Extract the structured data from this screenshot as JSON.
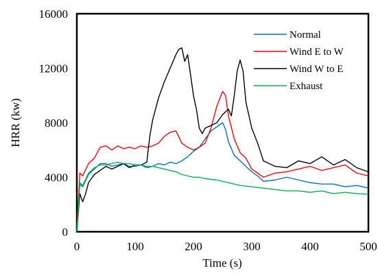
{
  "chart_data": {
    "type": "line",
    "title": "",
    "xlabel": "Time (s)",
    "ylabel": "HRR (kw)",
    "xlim": [
      0,
      500
    ],
    "ylim": [
      0,
      16000
    ],
    "xticks": [
      0,
      100,
      200,
      300,
      400,
      500
    ],
    "yticks": [
      0,
      4000,
      8000,
      12000,
      16000
    ],
    "grid": false,
    "legend": "top-right",
    "series": [
      {
        "name": "Normal",
        "color": "#0070C0",
        "x": [
          0,
          5,
          10,
          20,
          30,
          40,
          50,
          60,
          70,
          80,
          90,
          100,
          110,
          120,
          130,
          140,
          150,
          160,
          170,
          180,
          190,
          200,
          210,
          220,
          230,
          240,
          250,
          255,
          260,
          270,
          280,
          290,
          300,
          310,
          320,
          340,
          360,
          380,
          400,
          420,
          440,
          460,
          480,
          500
        ],
        "y": [
          0,
          3500,
          3300,
          4200,
          4600,
          5000,
          5000,
          4800,
          4900,
          5000,
          4800,
          4800,
          4900,
          4700,
          4800,
          5000,
          4900,
          5100,
          5000,
          5200,
          5500,
          5900,
          6200,
          6800,
          7400,
          7700,
          8000,
          7500,
          6600,
          5600,
          5200,
          4800,
          4400,
          4100,
          3700,
          3800,
          4000,
          3800,
          3600,
          3500,
          3500,
          3300,
          3400,
          3200
        ]
      },
      {
        "name": "Wind E to W",
        "color": "#FF0000",
        "x": [
          0,
          5,
          10,
          20,
          30,
          40,
          50,
          60,
          70,
          80,
          90,
          100,
          110,
          120,
          130,
          140,
          150,
          160,
          170,
          180,
          190,
          200,
          210,
          220,
          230,
          240,
          250,
          255,
          260,
          270,
          280,
          290,
          300,
          310,
          320,
          340,
          360,
          380,
          400,
          420,
          440,
          460,
          480,
          500
        ],
        "y": [
          0,
          4300,
          4100,
          5000,
          5400,
          6200,
          6300,
          6000,
          6300,
          6100,
          6200,
          6100,
          6300,
          6200,
          6300,
          6500,
          7000,
          7300,
          7400,
          6500,
          6200,
          6000,
          6200,
          6500,
          7600,
          9200,
          10300,
          10000,
          8500,
          6800,
          5800,
          5400,
          4600,
          4300,
          4000,
          4300,
          4400,
          4600,
          4800,
          4500,
          4700,
          4900,
          4300,
          4100
        ]
      },
      {
        "name": "Wind W to E",
        "color": "#000000",
        "x": [
          0,
          5,
          10,
          15,
          20,
          30,
          40,
          50,
          60,
          70,
          80,
          90,
          100,
          110,
          120,
          125,
          130,
          140,
          150,
          160,
          170,
          175,
          180,
          185,
          190,
          195,
          200,
          205,
          210,
          215,
          220,
          230,
          240,
          250,
          260,
          265,
          270,
          275,
          280,
          285,
          290,
          300,
          310,
          320,
          340,
          360,
          380,
          400,
          420,
          440,
          460,
          480,
          500
        ],
        "y": [
          0,
          2800,
          2200,
          2800,
          3600,
          4200,
          4500,
          4800,
          4600,
          4800,
          5000,
          4700,
          4900,
          4900,
          5100,
          7000,
          8200,
          9800,
          11000,
          12000,
          13000,
          13400,
          13500,
          12500,
          13000,
          11500,
          10000,
          9000,
          7600,
          7200,
          7600,
          7800,
          8000,
          8600,
          9000,
          8500,
          10000,
          11800,
          12600,
          11800,
          9500,
          7600,
          6500,
          5200,
          4800,
          4700,
          5200,
          5000,
          5500,
          4900,
          5300,
          4700,
          4400
        ]
      },
      {
        "name": "Exhaust",
        "color": "#00B050",
        "x": [
          0,
          5,
          10,
          20,
          30,
          40,
          50,
          60,
          70,
          80,
          90,
          100,
          110,
          120,
          130,
          140,
          150,
          160,
          170,
          180,
          190,
          200,
          210,
          220,
          240,
          260,
          280,
          300,
          320,
          340,
          360,
          380,
          400,
          420,
          440,
          460,
          480,
          500
        ],
        "y": [
          0,
          3600,
          3400,
          4300,
          4700,
          4900,
          4900,
          5000,
          5100,
          5000,
          5000,
          4900,
          4900,
          4800,
          4800,
          4700,
          4600,
          4500,
          4400,
          4200,
          4100,
          4000,
          4000,
          3900,
          3800,
          3600,
          3400,
          3300,
          3200,
          3100,
          3000,
          3000,
          2900,
          3000,
          2800,
          2900,
          2800,
          2750
        ]
      }
    ]
  }
}
